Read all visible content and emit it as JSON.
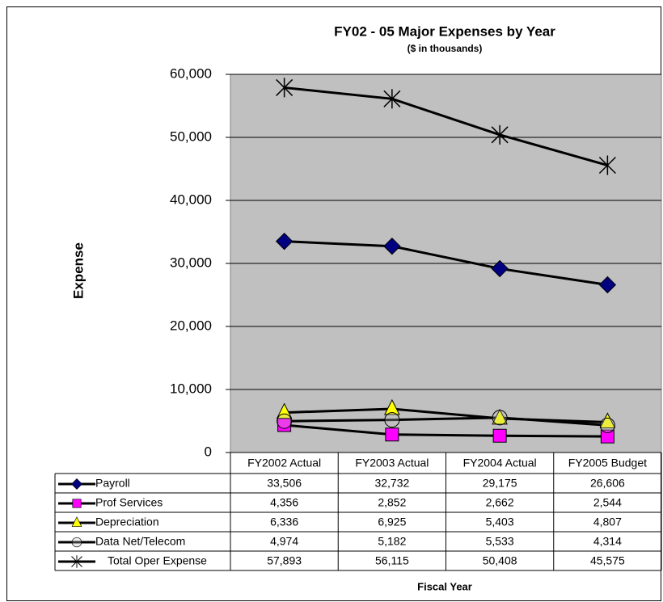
{
  "chart_data": {
    "type": "line",
    "title": "FY02 - 05 Major Expenses by Year",
    "subtitle": "($ in thousands)",
    "y_label": "Expense",
    "x_label": "Fiscal Year",
    "categories": [
      "FY2002 Actual",
      "FY2003 Actual",
      "FY2004 Actual",
      "FY2005 Budget"
    ],
    "ylim": [
      0,
      60000
    ],
    "yticks": [
      0,
      {
        "value": 10000,
        "label": "10,000"
      },
      {
        "value": 20000,
        "label": "20,000"
      },
      {
        "value": 30000,
        "label": "30,000"
      },
      {
        "value": 40000,
        "label": "40,000"
      },
      {
        "value": 50000,
        "label": "50,000"
      },
      {
        "value": 60000,
        "label": "60,000"
      }
    ],
    "grid": true,
    "series": [
      {
        "name": "Payroll",
        "color": "#000080",
        "marker": "diamond",
        "values": [
          33506,
          32732,
          29175,
          26606
        ],
        "value_labels": [
          "33,506",
          "32,732",
          "29,175",
          "26,606"
        ]
      },
      {
        "name": "Prof Services",
        "color": "#ff00ff",
        "marker": "square",
        "values": [
          4356,
          2852,
          2662,
          2544
        ],
        "value_labels": [
          "4,356",
          "2,852",
          "2,662",
          "2,544"
        ]
      },
      {
        "name": "Depreciation",
        "color": "#ffff00",
        "marker": "triangle",
        "values": [
          6336,
          6925,
          5403,
          4807
        ],
        "value_labels": [
          "6,336",
          "6,925",
          "5,403",
          "4,807"
        ]
      },
      {
        "name": "Data Net/Telecom",
        "color": "#c0c0c0",
        "marker": "circle",
        "values": [
          4974,
          5182,
          5533,
          4314
        ],
        "value_labels": [
          "4,974",
          "5,182",
          "5,533",
          "4,314"
        ]
      },
      {
        "name": "Total Oper Expense",
        "color": "#000000",
        "marker": "asterisk",
        "values": [
          57893,
          56115,
          50408,
          45575
        ],
        "value_labels": [
          "57,893",
          "56,115",
          "50,408",
          "45,575"
        ]
      }
    ]
  }
}
